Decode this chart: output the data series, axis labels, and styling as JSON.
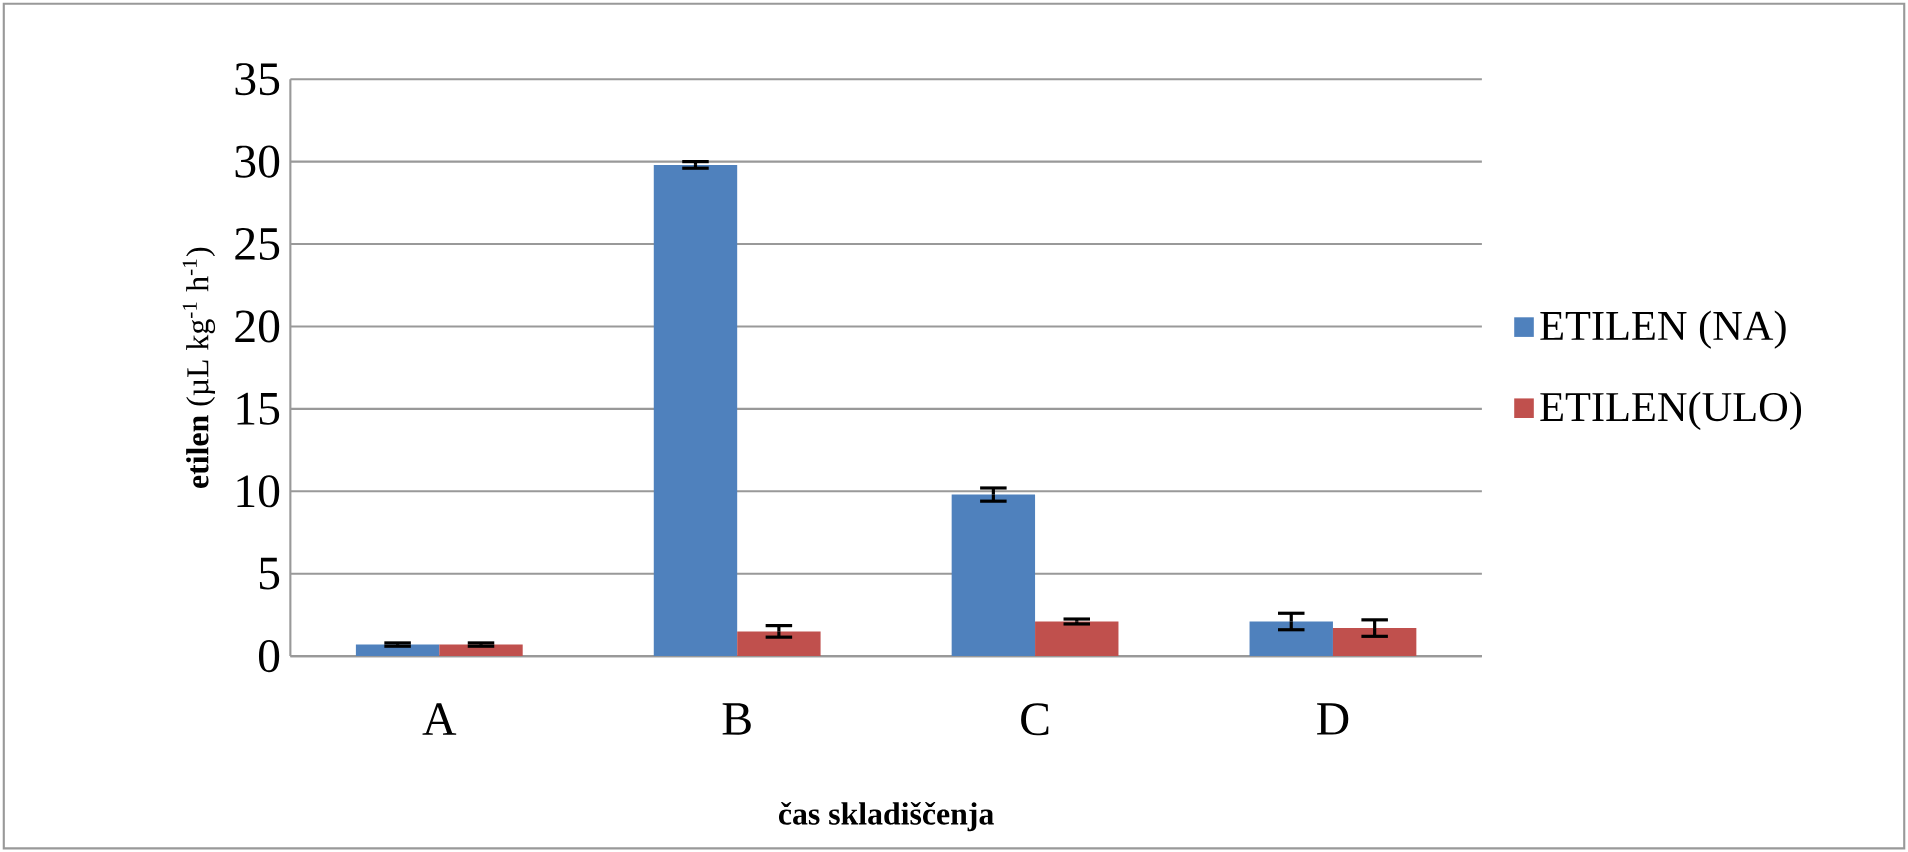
{
  "chart_data": {
    "type": "bar",
    "xlabel": "čas skladiščenja",
    "ylabel": "**etilen**  (µL kg$^{-1}$ h$^{-1}$)",
    "categories": [
      "A",
      "B",
      "C",
      "D"
    ],
    "series": [
      {
        "name": "ETILEN (NA)",
        "color": "#4f81bd",
        "values": [
          0.7,
          29.8,
          9.8,
          2.1
        ],
        "errors": [
          0.1,
          0.2,
          0.4,
          0.5
        ]
      },
      {
        "name": "ETILEN(ULO)",
        "color": "#c0504d",
        "values": [
          0.7,
          1.5,
          2.1,
          1.7
        ],
        "errors": [
          0.1,
          0.35,
          0.15,
          0.5
        ]
      }
    ],
    "ylim": [
      0,
      35
    ],
    "yticks": [
      0,
      5,
      10,
      15,
      20,
      25,
      30,
      35
    ],
    "grid": "y",
    "legend": "right"
  }
}
